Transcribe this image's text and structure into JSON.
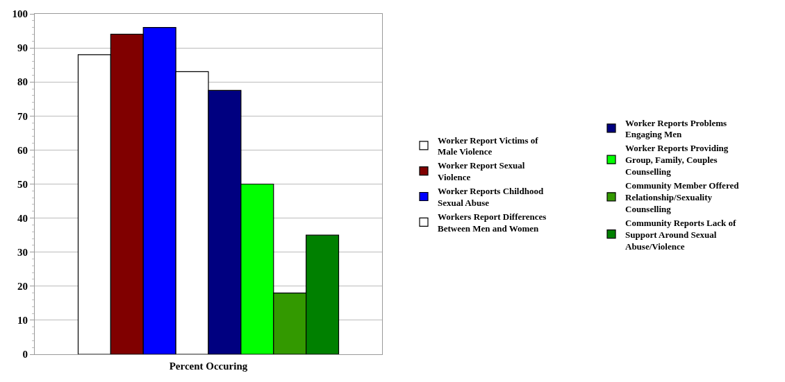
{
  "chart_data": {
    "type": "bar",
    "xlabel": "Percent Occuring",
    "categories": [
      null
    ],
    "series": [
      {
        "name": "Worker Report Victims of Male Violence",
        "color": "#ffffff",
        "values": [
          88
        ]
      },
      {
        "name": "Worker Report Sexual Violence",
        "color": "#800000",
        "values": [
          94
        ]
      },
      {
        "name": "Worker Reports Childhood Sexual Abuse",
        "color": "#0000ff",
        "values": [
          96
        ]
      },
      {
        "name": "Workers Report Differences Between Men and Women",
        "color": "#ffffff",
        "values": [
          83
        ]
      },
      {
        "name": "Worker Reports Problems Engaging Men",
        "color": "#000080",
        "values": [
          77.5
        ]
      },
      {
        "name": "Worker Reports Providing Group, Family, Couples Counselling",
        "color": "#00ff00",
        "values": [
          50
        ]
      },
      {
        "name": "Community Member Offered Relationship/Sexuality Counselling",
        "color": "#339900",
        "values": [
          18
        ]
      },
      {
        "name": "Community Reports Lack of Support Around Sexual Abuse/Violence",
        "color": "#008000",
        "values": [
          35
        ]
      }
    ],
    "ylim": [
      0,
      100
    ],
    "yticks": [
      0,
      10,
      20,
      30,
      40,
      50,
      60,
      70,
      80,
      90,
      100
    ],
    "grid": "y",
    "legend": "right"
  }
}
